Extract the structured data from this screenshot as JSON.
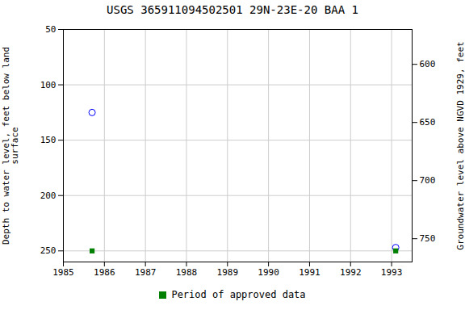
{
  "chart_data": {
    "type": "scatter",
    "title": "USGS 365911094502501 29N-23E-20 BAA 1",
    "ylabel": "Depth to water level, feet below land\nsurface",
    "y2label": "Groundwater level above NGVD 1929, feet",
    "xlim": [
      1985,
      1993.5
    ],
    "xticks": [
      1985,
      1986,
      1987,
      1988,
      1989,
      1990,
      1991,
      1992,
      1993
    ],
    "ylim": [
      260,
      50
    ],
    "yticks": [
      50,
      100,
      150,
      200,
      250
    ],
    "y2lim": [
      770,
      570
    ],
    "y2ticks": [
      600,
      650,
      700,
      750
    ],
    "grid": true,
    "legend": "bottom",
    "series": [
      {
        "color": "blue",
        "marker": "circle",
        "x": [
          1985.7,
          1993.1
        ],
        "values": [
          125,
          247
        ]
      },
      {
        "name": "Period of approved data",
        "color": "#008000",
        "marker": "square",
        "x": [
          1985.7,
          1993.1
        ],
        "values": [
          250,
          250
        ]
      }
    ]
  }
}
